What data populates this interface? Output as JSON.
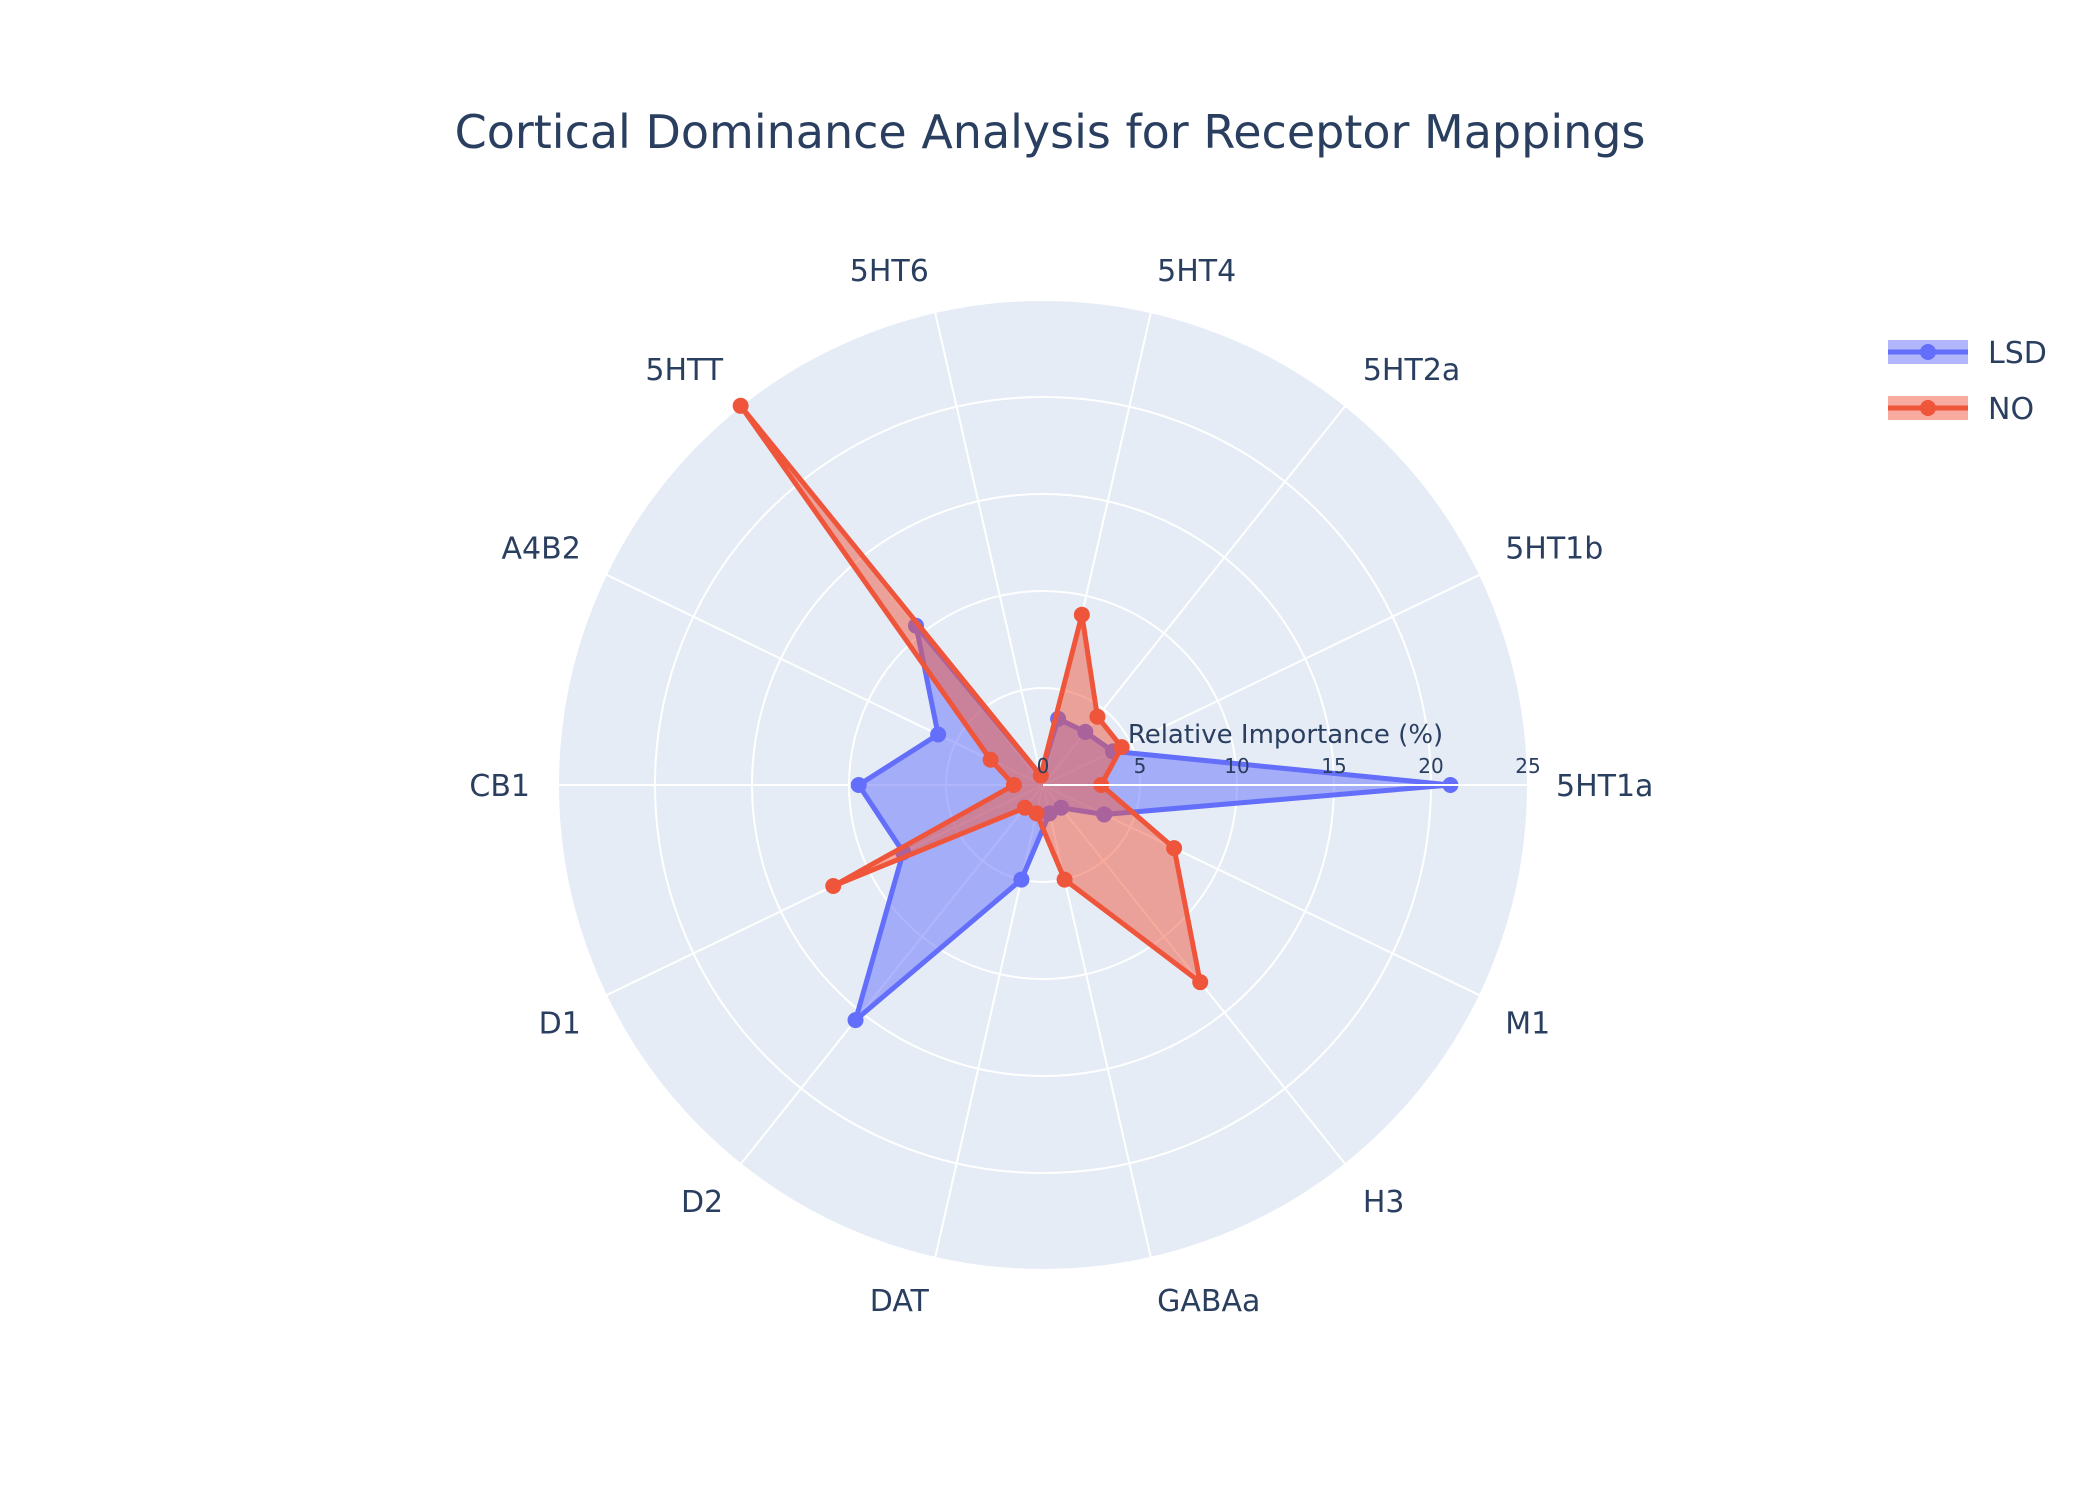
{
  "chart_data": {
    "type": "radar",
    "title": "Cortical Dominance Analysis for Receptor Mappings",
    "radial_axis_title": "Relative Importance (%)",
    "radial_range": [
      0,
      25
    ],
    "radial_ticks": [
      0,
      5,
      10,
      15,
      20,
      25
    ],
    "categories": [
      "5HT1a",
      "5HT1b",
      "5HT2a",
      "5HT4",
      "5HT6",
      "5HTT",
      "A4B2",
      "CB1",
      "D1",
      "D2",
      "DAT",
      "GABAa",
      "H3",
      "M1"
    ],
    "series": [
      {
        "name": "LSD",
        "color": "#636efa",
        "fill": "rgba(99,110,250,0.5)",
        "values": [
          21,
          4,
          3.5,
          3.5,
          0.5,
          10.5,
          6,
          9.5,
          8,
          15.5,
          5,
          1.5,
          1.5,
          3.5
        ]
      },
      {
        "name": "NO",
        "color": "#ef553b",
        "fill": "rgba(239,85,59,0.5)",
        "values": [
          3,
          4.5,
          4.5,
          9,
          0.5,
          25,
          3,
          1.5,
          12,
          1.5,
          1.5,
          5,
          13,
          7.5
        ]
      }
    ],
    "legend_position": "top-right",
    "grid": true
  }
}
